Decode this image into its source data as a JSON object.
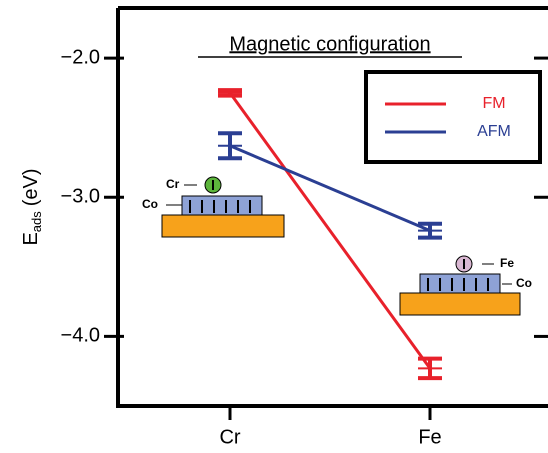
{
  "chart_data": {
    "type": "errorbar-line",
    "title": "Magnetic configuration",
    "ylabel": "E",
    "ylabel_sub": "ads",
    "ylabel_unit": "(eV)",
    "categories": [
      "Cr",
      "Fe"
    ],
    "series": [
      {
        "name": "FM",
        "color": "#e8212b",
        "values": [
          -2.25,
          -4.23
        ],
        "errors": [
          0.02,
          0.07
        ]
      },
      {
        "name": "AFM",
        "color": "#2b3f93",
        "values": [
          -2.63,
          -3.24
        ],
        "errors": [
          0.09,
          0.05
        ]
      }
    ],
    "ylim": [
      -4.5,
      -1.64
    ],
    "yticks": [
      {
        "value": -2.0,
        "label": "−2.0"
      },
      {
        "value": -3.0,
        "label": "−3.0"
      },
      {
        "value": -4.0,
        "label": "−4.0"
      }
    ],
    "legend": "upper right",
    "annotations": {
      "cr_adatom": "Cr",
      "cr_substrate": "Co",
      "fe_adatom": "Fe",
      "fe_substrate": "Co"
    }
  }
}
